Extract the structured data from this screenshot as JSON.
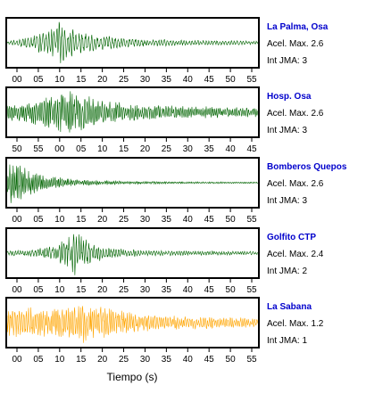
{
  "chart_data": {
    "type": "line",
    "xlabel": "Tiempo (s)",
    "panels": [
      {
        "station": "La Palma, Osa",
        "accel": "Acel. Max. 2.6",
        "jma": "Int JMA: 3",
        "color": "#006400",
        "ticks": [
          "00",
          "05",
          "10",
          "15",
          "20",
          "25",
          "30",
          "35",
          "40",
          "45",
          "50",
          "55"
        ],
        "x_start": -2,
        "x_end": 58,
        "series": {
          "envelope": [
            [
              -2,
              0.08
            ],
            [
              2,
              0.22
            ],
            [
              5,
              0.4
            ],
            [
              8,
              0.55
            ],
            [
              9.5,
              0.7
            ],
            [
              10.5,
              1.0
            ],
            [
              11.5,
              0.9
            ],
            [
              13,
              0.7
            ],
            [
              15,
              0.55
            ],
            [
              18,
              0.4
            ],
            [
              22,
              0.3
            ],
            [
              26,
              0.22
            ],
            [
              30,
              0.17
            ],
            [
              40,
              0.12
            ],
            [
              50,
              0.1
            ],
            [
              58,
              0.08
            ]
          ],
          "dominant_period": 0.7
        }
      },
      {
        "station": "Hosp. Osa",
        "accel": "Acel. Max. 2.6",
        "jma": "Int JMA: 3",
        "color": "#006400",
        "ticks": [
          "50",
          "55",
          "00",
          "05",
          "10",
          "15",
          "20",
          "25",
          "30",
          "35",
          "40",
          "45"
        ],
        "x_start": -1,
        "x_end": 59,
        "series": {
          "envelope": [
            [
              -1,
              0.35
            ],
            [
              3,
              0.45
            ],
            [
              7,
              0.6
            ],
            [
              10,
              0.8
            ],
            [
              12,
              1.0
            ],
            [
              14,
              0.95
            ],
            [
              17,
              0.8
            ],
            [
              20,
              0.65
            ],
            [
              24,
              0.5
            ],
            [
              28,
              0.4
            ],
            [
              35,
              0.32
            ],
            [
              45,
              0.26
            ],
            [
              59,
              0.22
            ]
          ],
          "dominant_period": 0.45
        }
      },
      {
        "station": "Bomberos Quepos",
        "accel": "Acel. Max. 2.6",
        "jma": "Int JMA: 3",
        "color": "#006400",
        "ticks": [
          "00",
          "05",
          "10",
          "15",
          "20",
          "25",
          "30",
          "35",
          "40",
          "45",
          "50",
          "55"
        ],
        "x_start": -2,
        "x_end": 58,
        "series": {
          "envelope": [
            [
              -2,
              0.5
            ],
            [
              -1,
              1.0
            ],
            [
              1,
              0.9
            ],
            [
              3,
              0.6
            ],
            [
              6,
              0.4
            ],
            [
              10,
              0.25
            ],
            [
              15,
              0.15
            ],
            [
              20,
              0.1
            ],
            [
              30,
              0.06
            ],
            [
              45,
              0.04
            ],
            [
              58,
              0.03
            ]
          ],
          "dominant_period": 0.4
        }
      },
      {
        "station": "Golfito CTP",
        "accel": "Acel. Max. 2.4",
        "jma": "Int JMA: 2",
        "color": "#006400",
        "ticks": [
          "00",
          "05",
          "10",
          "15",
          "20",
          "25",
          "30",
          "35",
          "40",
          "45",
          "50",
          "55"
        ],
        "x_start": -2,
        "x_end": 58,
        "series": {
          "envelope": [
            [
              -2,
              0.1
            ],
            [
              4,
              0.15
            ],
            [
              8,
              0.3
            ],
            [
              11,
              0.55
            ],
            [
              13,
              0.85
            ],
            [
              14.5,
              1.0
            ],
            [
              16,
              0.75
            ],
            [
              18,
              0.45
            ],
            [
              21,
              0.3
            ],
            [
              25,
              0.2
            ],
            [
              30,
              0.14
            ],
            [
              40,
              0.1
            ],
            [
              58,
              0.08
            ]
          ],
          "dominant_period": 0.6
        }
      },
      {
        "station": "La Sabana",
        "accel": "Acel. Max. 1.2",
        "jma": "Int JMA: 1",
        "color": "#FFA500",
        "ticks": [
          "00",
          "05",
          "10",
          "15",
          "20",
          "25",
          "30",
          "35",
          "40",
          "45",
          "50",
          "55"
        ],
        "x_start": -2,
        "x_end": 58,
        "series": {
          "envelope": [
            [
              -2,
              0.6
            ],
            [
              2,
              0.7
            ],
            [
              6,
              0.65
            ],
            [
              10,
              0.7
            ],
            [
              14,
              0.85
            ],
            [
              15.5,
              1.0
            ],
            [
              17,
              0.85
            ],
            [
              20,
              0.75
            ],
            [
              23,
              0.7
            ],
            [
              26,
              0.5
            ],
            [
              30,
              0.4
            ],
            [
              40,
              0.3
            ],
            [
              50,
              0.25
            ],
            [
              58,
              0.22
            ]
          ],
          "dominant_period": 0.5
        }
      }
    ]
  }
}
